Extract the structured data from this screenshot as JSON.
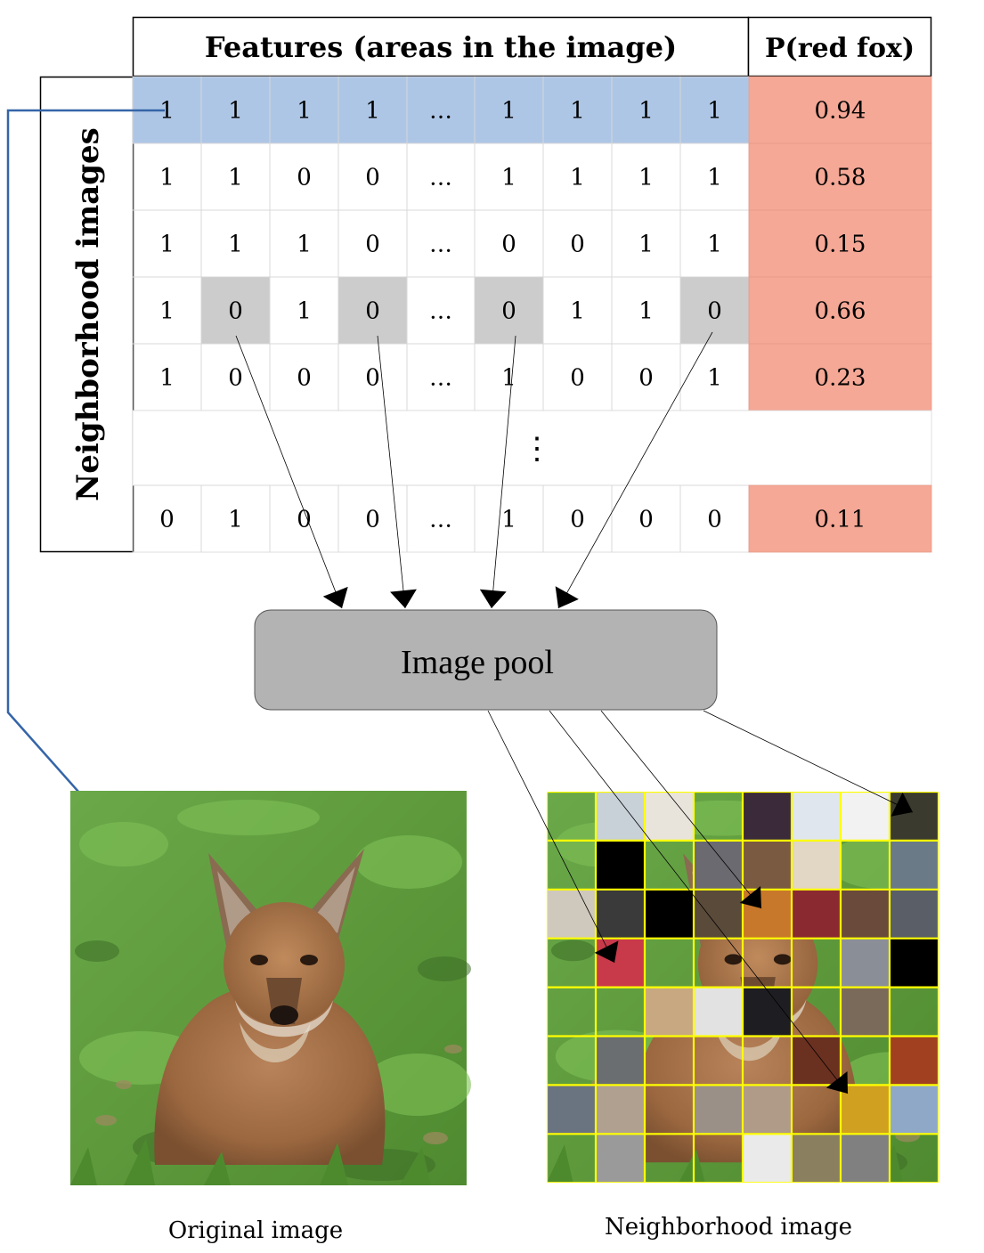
{
  "table": {
    "features_header": "Features (areas in the image)",
    "prob_header": "P(red fox)",
    "row_header": "Neighborhood images",
    "rows": [
      {
        "cells": [
          "1",
          "1",
          "1",
          "1",
          "…",
          "1",
          "1",
          "1",
          "1"
        ],
        "p": "0.94"
      },
      {
        "cells": [
          "1",
          "1",
          "0",
          "0",
          "…",
          "1",
          "1",
          "1",
          "1"
        ],
        "p": "0.58"
      },
      {
        "cells": [
          "1",
          "1",
          "1",
          "0",
          "…",
          "0",
          "0",
          "1",
          "1"
        ],
        "p": "0.15"
      },
      {
        "cells": [
          "1",
          "0",
          "1",
          "0",
          "…",
          "0",
          "1",
          "1",
          "0"
        ],
        "p": "0.66"
      },
      {
        "cells": [
          "1",
          "0",
          "0",
          "0",
          "…",
          "1",
          "0",
          "0",
          "1"
        ],
        "p": "0.23"
      },
      {
        "cells": [
          "0",
          "1",
          "0",
          "0",
          "…",
          "1",
          "0",
          "0",
          "0"
        ],
        "p": "0.11"
      }
    ],
    "vdots": "⋮"
  },
  "pool": {
    "label": "Image pool"
  },
  "captions": {
    "original": "Original image",
    "neighborhood": "Neighborhood image"
  },
  "colors": {
    "highlight_row": "#aec6e6",
    "prob_fill": "#f5a896",
    "zero_highlight": "#cccccc",
    "pool_fill": "#b3b3b3",
    "grid_line": "#ffff00",
    "blue_arrow": "#3565a8"
  }
}
